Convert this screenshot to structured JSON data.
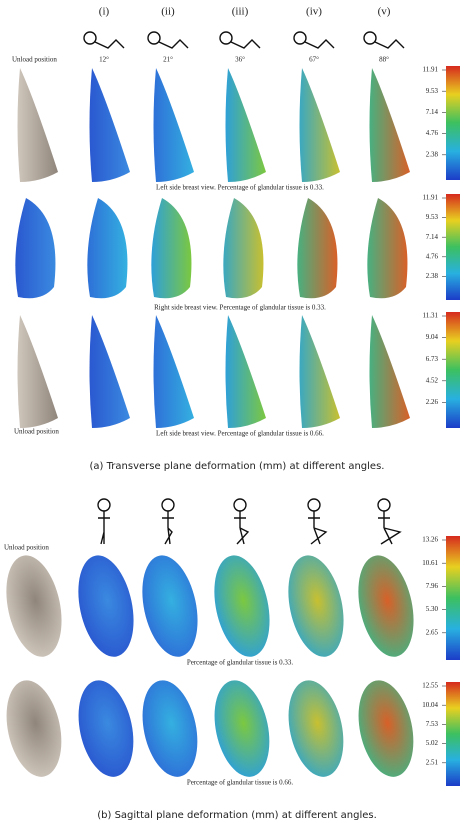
{
  "panels": [
    {
      "caption": "(a) Transverse plane deformation (mm) at different angles.",
      "column_labels": [
        "(i)",
        "(ii)",
        "(iii)",
        "(iv)",
        "(v)"
      ],
      "angles": [
        "12°",
        "21°",
        "36°",
        "67°",
        "88°"
      ],
      "unload_label": "Unload position",
      "rows": [
        {
          "caption": "Left side breast view. Percentage of glandular tissue is 0.33.",
          "colorbar": [
            "11.91",
            "9.53",
            "7.14",
            "4.76",
            "2.38"
          ]
        },
        {
          "caption": "Right side breast view. Percentage of glandular tissue is 0.33.",
          "colorbar": [
            "11.91",
            "9.53",
            "7.14",
            "4.76",
            "2.38"
          ]
        },
        {
          "caption": "Left side breast view. Percentage of glandular tissue is 0.66.",
          "colorbar": [
            "11.31",
            "9.04",
            "6.73",
            "4.52",
            "2.26"
          ]
        }
      ],
      "bottom_unload_label": "Unload position"
    },
    {
      "caption": "(b) Sagittal plane deformation (mm) at different angles.",
      "unload_label": "Unload position",
      "rows": [
        {
          "caption": "Percentage of glandular tissue is 0.33.",
          "colorbar": [
            "13.26",
            "10.61",
            "7.96",
            "5.30",
            "2.65"
          ]
        },
        {
          "caption": "Percentage of glandular tissue is 0.66.",
          "colorbar": [
            "12.55",
            "10.04",
            "7.53",
            "5.02",
            "2.51"
          ]
        }
      ]
    }
  ]
}
